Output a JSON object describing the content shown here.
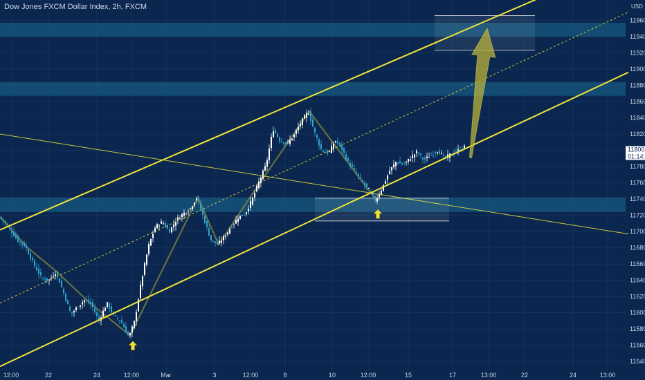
{
  "header": {
    "title": "Dow Jones FXCM Dollar Index, 2h, FXCM"
  },
  "price_scale": {
    "currency": "USD",
    "last_price": "11800",
    "countdown": "01:14:1"
  },
  "colors": {
    "background": "#0b2750",
    "zone_fill": "#1b6a8e",
    "channel_line": "#f2e33a",
    "arrow_fill": "#b9b23a",
    "bull_candle": "#ffffff",
    "bear_candle": "#2fa4cc",
    "marker": "#f5e22a"
  },
  "chart_data": {
    "type": "candlestick",
    "title": "Dow Jones FXCM Dollar Index, 2h, FXCM",
    "ylabel": "USD",
    "ylim": [
      11530,
      11985
    ],
    "y_ticks": [
      11540,
      11560,
      11580,
      11600,
      11620,
      11640,
      11660,
      11680,
      11700,
      11720,
      11740,
      11760,
      11780,
      11800,
      11820,
      11840,
      11860,
      11880,
      11900,
      11920,
      11940,
      11960
    ],
    "x_ticks": [
      "12:00",
      "22",
      "24",
      "12:00",
      "Mar",
      "3",
      "12:00",
      "8",
      "10",
      "12:00",
      "15",
      "17",
      "13:00",
      "22",
      "24",
      "13:00"
    ],
    "price_path": [
      [
        0,
        11718
      ],
      [
        8,
        11712
      ],
      [
        18,
        11700
      ],
      [
        28,
        11688
      ],
      [
        38,
        11682
      ],
      [
        50,
        11660
      ],
      [
        62,
        11642
      ],
      [
        72,
        11640
      ],
      [
        82,
        11650
      ],
      [
        92,
        11628
      ],
      [
        104,
        11598
      ],
      [
        114,
        11608
      ],
      [
        124,
        11616
      ],
      [
        134,
        11610
      ],
      [
        144,
        11590
      ],
      [
        156,
        11612
      ],
      [
        166,
        11596
      ],
      [
        176,
        11590
      ],
      [
        188,
        11570
      ],
      [
        196,
        11590
      ],
      [
        206,
        11640
      ],
      [
        216,
        11682
      ],
      [
        226,
        11706
      ],
      [
        236,
        11712
      ],
      [
        246,
        11700
      ],
      [
        256,
        11714
      ],
      [
        266,
        11722
      ],
      [
        276,
        11728
      ],
      [
        286,
        11742
      ],
      [
        296,
        11716
      ],
      [
        306,
        11690
      ],
      [
        316,
        11684
      ],
      [
        326,
        11694
      ],
      [
        336,
        11706
      ],
      [
        346,
        11718
      ],
      [
        356,
        11722
      ],
      [
        366,
        11740
      ],
      [
        376,
        11762
      ],
      [
        386,
        11782
      ],
      [
        396,
        11826
      ],
      [
        406,
        11812
      ],
      [
        416,
        11808
      ],
      [
        426,
        11818
      ],
      [
        436,
        11834
      ],
      [
        447,
        11848
      ],
      [
        456,
        11822
      ],
      [
        466,
        11800
      ],
      [
        476,
        11796
      ],
      [
        486,
        11812
      ],
      [
        494,
        11804
      ],
      [
        504,
        11786
      ],
      [
        514,
        11774
      ],
      [
        524,
        11762
      ],
      [
        534,
        11752
      ],
      [
        544,
        11738
      ],
      [
        554,
        11754
      ],
      [
        564,
        11774
      ],
      [
        574,
        11786
      ],
      [
        584,
        11782
      ],
      [
        594,
        11790
      ],
      [
        604,
        11798
      ],
      [
        614,
        11788
      ],
      [
        624,
        11794
      ],
      [
        634,
        11800
      ],
      [
        644,
        11790
      ],
      [
        654,
        11796
      ],
      [
        664,
        11800
      ],
      [
        672,
        11804
      ]
    ],
    "zigzag": [
      [
        0,
        11718
      ],
      [
        40,
        11680
      ],
      [
        80,
        11652
      ],
      [
        130,
        11612
      ],
      [
        188,
        11572
      ],
      [
        286,
        11742
      ],
      [
        316,
        11684
      ],
      [
        366,
        11748
      ],
      [
        447,
        11848
      ],
      [
        544,
        11738
      ]
    ],
    "zones": [
      {
        "y0": 11940,
        "y1": 11957
      },
      {
        "y0": 11867,
        "y1": 11884
      },
      {
        "y0": 11724,
        "y1": 11742
      }
    ],
    "targets": [
      {
        "x0": 628,
        "x1": 773,
        "y0": 11923,
        "y1": 11966
      },
      {
        "x0": 455,
        "x1": 649,
        "y0": 11713,
        "y1": 11741
      }
    ],
    "channel": {
      "upper": [
        [
          0,
          11702
        ],
        [
          800,
          11995
        ]
      ],
      "lower": [
        [
          0,
          11534
        ],
        [
          908,
          11896
        ]
      ],
      "mid": [
        [
          0,
          11612
        ],
        [
          908,
          11970
        ]
      ]
    },
    "trendline": [
      [
        0,
        11820
      ],
      [
        908,
        11697
      ]
    ],
    "markers": [
      {
        "x": 192,
        "y": 11560
      },
      {
        "x": 546,
        "y": 11722
      }
    ],
    "projection_arrow": {
      "from": [
        680,
        11791
      ],
      "to": [
        704,
        11950
      ]
    }
  }
}
